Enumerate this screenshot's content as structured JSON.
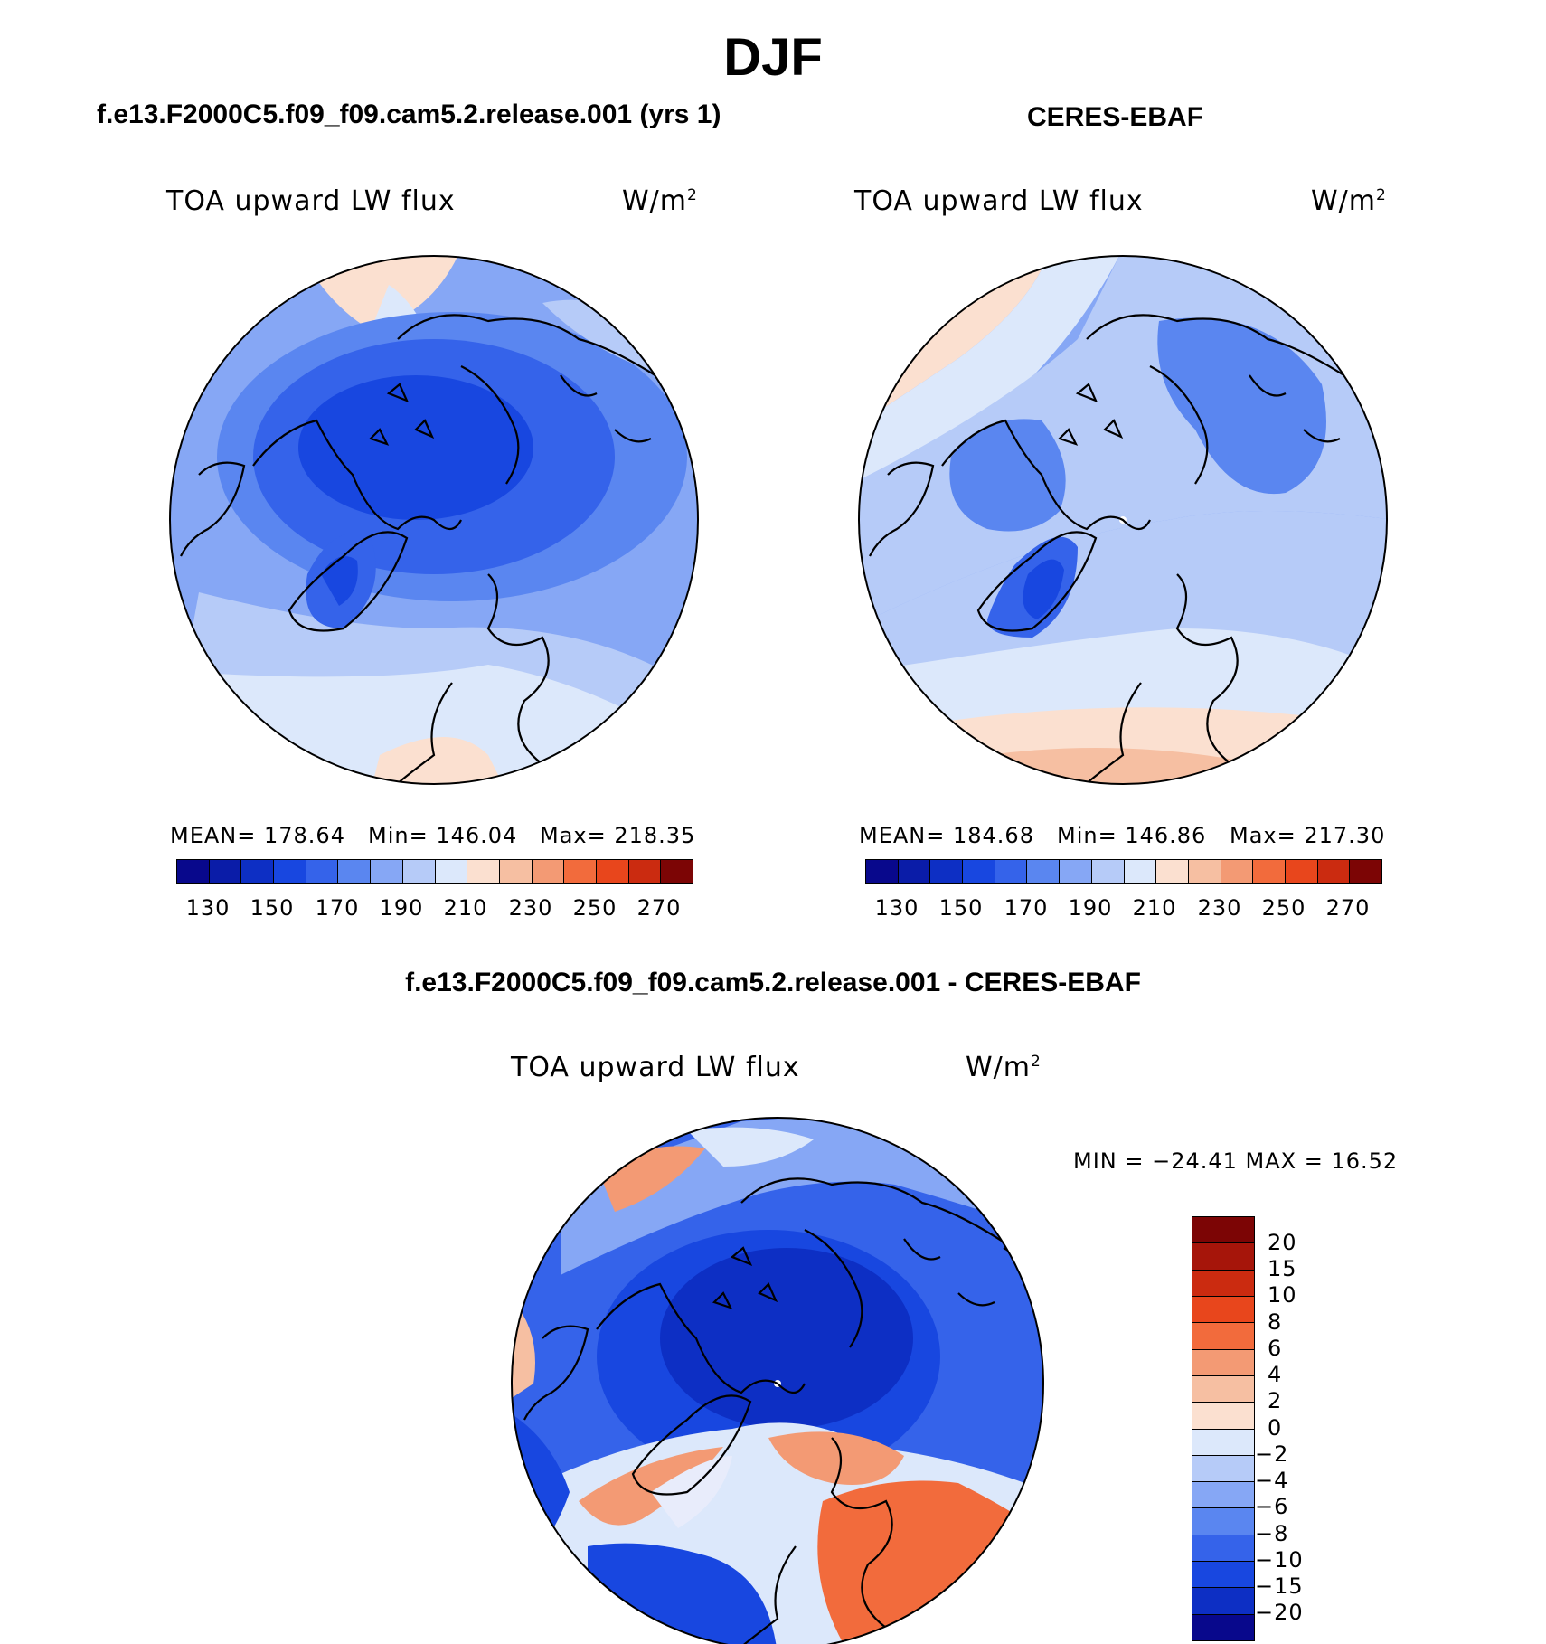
{
  "figure": {
    "title": "DJF",
    "model_title": "f.e13.F2000C5.f09_f09.cam5.2.release.001 (yrs 1)",
    "obs_title": "CERES-EBAF",
    "diff_title": "f.e13.F2000C5.f09_f09.cam5.2.release.001 - CERES-EBAF"
  },
  "panels": {
    "model": {
      "variable": "TOA upward LW flux",
      "units": "W/m",
      "units_sup": "2",
      "mean": "MEAN= 178.64",
      "min": "Min= 146.04",
      "max": "Max= 218.35"
    },
    "obs": {
      "variable": "TOA upward LW flux",
      "units": "W/m",
      "units_sup": "2",
      "mean": "MEAN= 184.68",
      "min": "Min= 146.86",
      "max": "Max= 217.30"
    },
    "diff": {
      "variable": "TOA upward LW flux",
      "units": "W/m",
      "units_sup": "2",
      "minmax": "MIN = −24.41 MAX =  16.52"
    }
  },
  "chart_data": [
    {
      "type": "heatmap",
      "title": "TOA upward LW flux",
      "subtitle": "f.e13.F2000C5.f09_f09.cam5.2.release.001 (yrs 1)",
      "units": "W/m2",
      "projection": "north polar stereographic",
      "mean": 178.64,
      "min": 146.04,
      "max": 218.35,
      "colorbar_ticks": [
        "130",
        "150",
        "170",
        "190",
        "210",
        "230",
        "250",
        "270"
      ],
      "levels": [
        130,
        140,
        150,
        160,
        170,
        180,
        190,
        200,
        210,
        220,
        230,
        240,
        250,
        260,
        270
      ]
    },
    {
      "type": "heatmap",
      "title": "TOA upward LW flux",
      "subtitle": "CERES-EBAF",
      "units": "W/m2",
      "projection": "north polar stereographic",
      "mean": 184.68,
      "min": 146.86,
      "max": 217.3,
      "colorbar_ticks": [
        "130",
        "150",
        "170",
        "190",
        "210",
        "230",
        "250",
        "270"
      ],
      "levels": [
        130,
        140,
        150,
        160,
        170,
        180,
        190,
        200,
        210,
        220,
        230,
        240,
        250,
        260,
        270
      ]
    },
    {
      "type": "heatmap",
      "title": "TOA upward LW flux",
      "subtitle": "f.e13.F2000C5.f09_f09.cam5.2.release.001 - CERES-EBAF",
      "units": "W/m2",
      "projection": "north polar stereographic",
      "min": -24.41,
      "max": 16.52,
      "colorbar_ticks": [
        "20",
        "15",
        "10",
        "8",
        "6",
        "4",
        "2",
        "0",
        "−2",
        "−4",
        "−6",
        "−8",
        "−10",
        "−15",
        "−20"
      ],
      "levels": [
        20,
        15,
        10,
        8,
        6,
        4,
        2,
        0,
        -2,
        -4,
        -6,
        -8,
        -10,
        -15,
        -20
      ]
    }
  ],
  "colors": {
    "scale16": [
      "#08088c",
      "#0a1ca8",
      "#0d2fc4",
      "#1847e0",
      "#3563ea",
      "#5a86f0",
      "#86a7f5",
      "#b6cbf8",
      "#dce8fb",
      "#fbe0d0",
      "#f6bfa2",
      "#f39a74",
      "#f26b3c",
      "#e8461c",
      "#cb2b10",
      "#a6150a",
      "#7c0505"
    ]
  }
}
